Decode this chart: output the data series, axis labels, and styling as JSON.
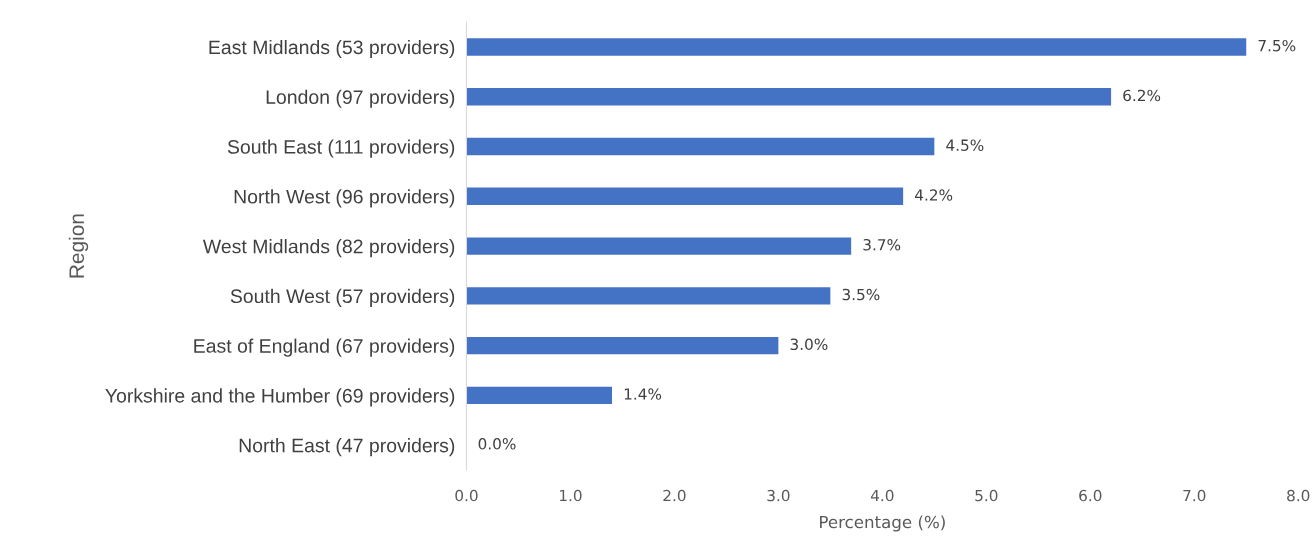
{
  "chart_data": {
    "type": "bar",
    "orientation": "horizontal",
    "xlabel": "Percentage (%)",
    "ylabel": "Region",
    "categories": [
      "East Midlands (53 providers)",
      "London (97 providers)",
      "South East (111 providers)",
      "North West (96 providers)",
      "West Midlands (82 providers)",
      "South West (57 providers)",
      "East of England (67 providers)",
      "Yorkshire and the Humber (69 providers)",
      "North East (47 providers)"
    ],
    "values": [
      7.5,
      6.2,
      4.5,
      4.2,
      3.7,
      3.5,
      3.0,
      1.4,
      0.0
    ],
    "value_labels": [
      "7.5%",
      "6.2%",
      "4.5%",
      "4.2%",
      "3.7%",
      "3.5%",
      "3.0%",
      "1.4%",
      "0.0%"
    ],
    "color": "#4472c4",
    "xlim": [
      0,
      8
    ],
    "xticks": [
      {
        "value": 0,
        "label": "0.0"
      },
      {
        "value": 1,
        "label": "1.0"
      },
      {
        "value": 2,
        "label": "2.0"
      },
      {
        "value": 3,
        "label": "3.0"
      },
      {
        "value": 4,
        "label": "4.0"
      },
      {
        "value": 5,
        "label": "5.0"
      },
      {
        "value": 6,
        "label": "6.0"
      },
      {
        "value": 7,
        "label": "7.0"
      },
      {
        "value": 8,
        "label": "8.0"
      }
    ],
    "grid": false,
    "legend": false
  }
}
